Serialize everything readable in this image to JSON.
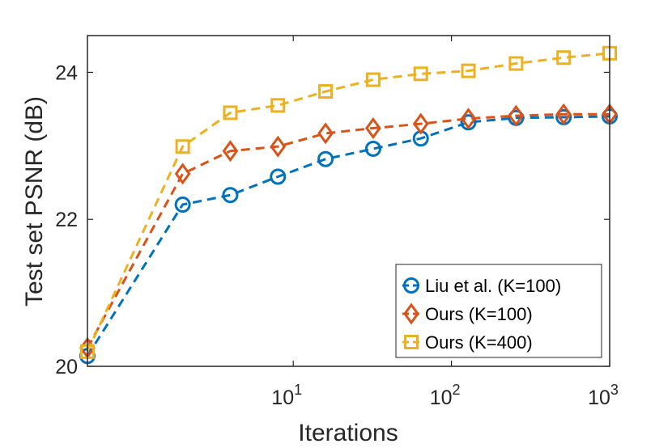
{
  "chart_data": {
    "type": "line",
    "xscale": "log",
    "xlabel": "Iterations",
    "ylabel": "Test set PSNR (dB)",
    "xlim": [
      0.5,
      1000
    ],
    "ylim": [
      20,
      24.5
    ],
    "x": [
      0.5,
      2,
      4,
      8,
      16,
      32,
      64,
      128,
      256,
      512,
      1000
    ],
    "x_ticks": [
      {
        "value": 10,
        "base": "10",
        "exp": "1"
      },
      {
        "value": 100,
        "base": "10",
        "exp": "2"
      },
      {
        "value": 1000,
        "base": "10",
        "exp": "3"
      }
    ],
    "y_ticks": [
      {
        "value": 20,
        "label": "20"
      },
      {
        "value": 22,
        "label": "22"
      },
      {
        "value": 24,
        "label": "24"
      }
    ],
    "series": [
      {
        "name": "Liu et al. (K=100)",
        "color": "#0072BD",
        "marker": "circle",
        "values": [
          20.14,
          22.2,
          22.33,
          22.58,
          22.82,
          22.96,
          23.1,
          23.32,
          23.38,
          23.39,
          23.4
        ]
      },
      {
        "name": "Ours (K=100)",
        "color": "#D95319",
        "marker": "diamond",
        "values": [
          20.25,
          22.62,
          22.93,
          22.99,
          23.17,
          23.24,
          23.3,
          23.37,
          23.41,
          23.43,
          23.43
        ]
      },
      {
        "name": "Ours (K=400)",
        "color": "#EDB120",
        "marker": "square",
        "values": [
          20.2,
          22.99,
          23.45,
          23.55,
          23.74,
          23.9,
          23.98,
          24.02,
          24.12,
          24.2,
          24.26
        ]
      }
    ],
    "legend_position": "bottom-right"
  }
}
